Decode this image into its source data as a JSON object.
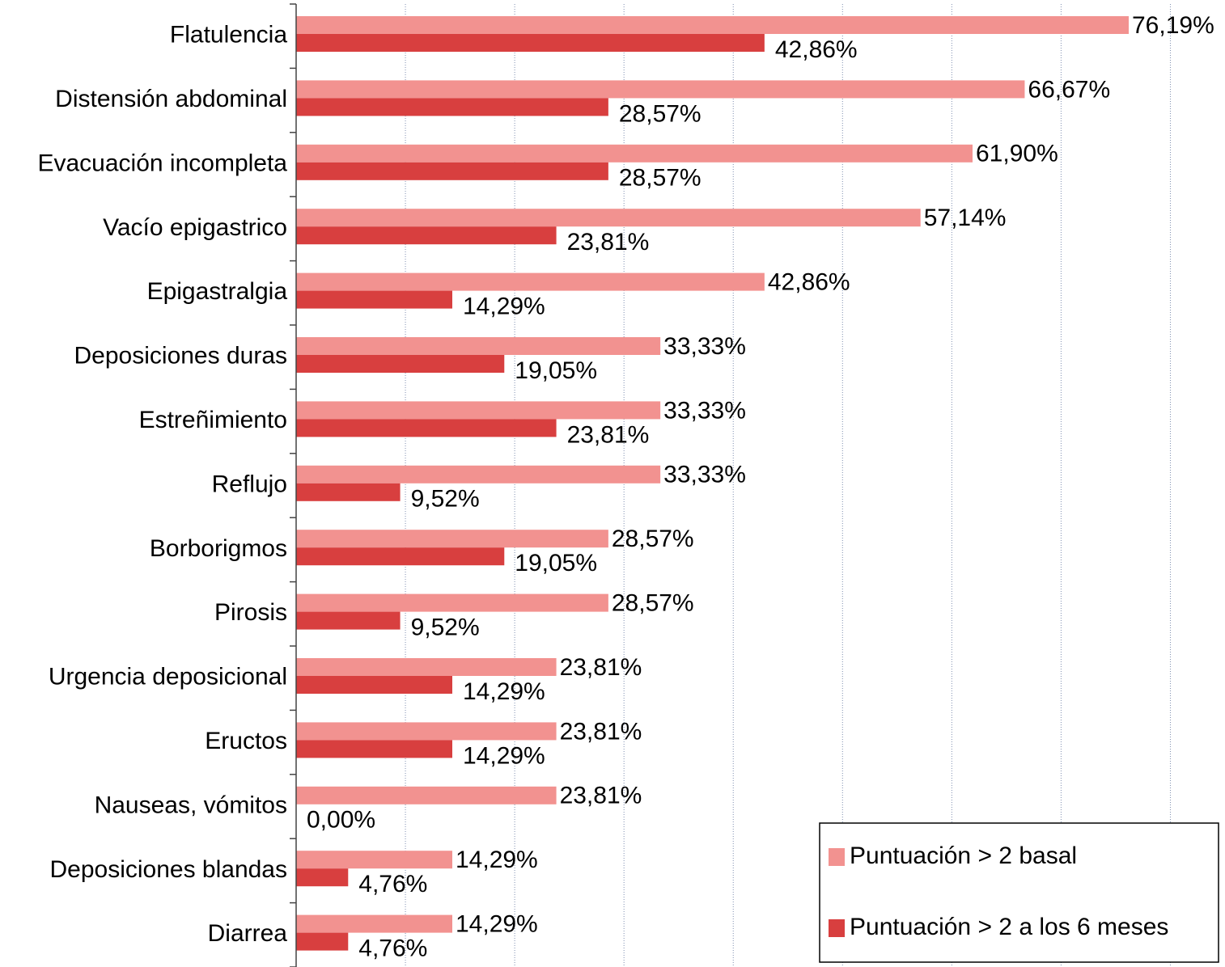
{
  "chart_data": {
    "type": "hbar",
    "categories": [
      "Flatulencia",
      "Distensión abdominal",
      "Evacuación incompleta",
      "Vacío epigastrico",
      "Epigastralgia",
      "Deposiciones duras",
      "Estreñimiento",
      "Reflujo",
      "Borborigmos",
      "Pirosis",
      "Urgencia deposicional",
      "Eructos",
      "Nauseas, vómitos",
      "Deposiciones blandas",
      "Diarrea"
    ],
    "series": [
      {
        "name": "Puntuación > 2 basal",
        "color": "#f29290",
        "values": [
          76.19,
          66.67,
          61.9,
          57.14,
          42.86,
          33.33,
          33.33,
          33.33,
          28.57,
          28.57,
          23.81,
          23.81,
          23.81,
          14.29,
          14.29
        ],
        "value_labels": [
          "76,19%",
          "66,67%",
          "61,90%",
          "57,14%",
          "42,86%",
          "33,33%",
          "33,33%",
          "33,33%",
          "28,57%",
          "28,57%",
          "23,81%",
          "23,81%",
          "23,81%",
          "14,29%",
          "14,29%"
        ]
      },
      {
        "name": "Puntuación > 2 a los 6 meses",
        "color": "#d83f3f",
        "values": [
          42.86,
          28.57,
          28.57,
          23.81,
          14.29,
          19.05,
          23.81,
          9.52,
          19.05,
          9.52,
          14.29,
          14.29,
          0.0,
          4.76,
          4.76
        ],
        "value_labels": [
          "42,86%",
          "28,57%",
          "28,57%",
          "23,81%",
          "14,29%",
          "19,05%",
          "23,81%",
          "9,52%",
          "19,05%",
          "9,52%",
          "14,29%",
          "14,29%",
          "0,00%",
          "4,76%",
          "4,76%"
        ]
      }
    ],
    "xlim": [
      0,
      85
    ],
    "xticks": [
      10,
      20,
      30,
      40,
      50,
      60,
      70,
      80
    ],
    "grid": true,
    "legend": "lower right"
  }
}
